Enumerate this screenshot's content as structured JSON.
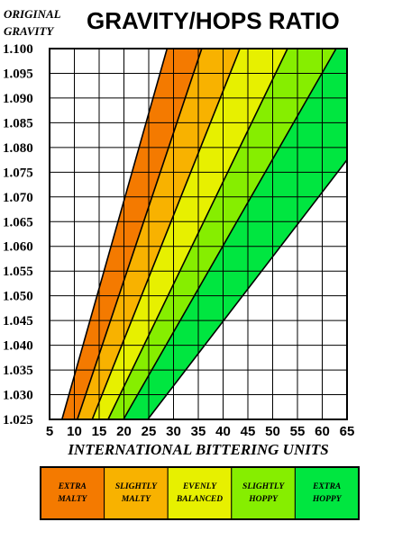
{
  "chart_data": {
    "type": "area",
    "title": "GRAVITY/HOPS RATIO",
    "title_side": [
      "ORIGINAL",
      "GRAVITY"
    ],
    "xlabel": "INTERNATIONAL BITTERING UNITS",
    "ylabel": "ORIGINAL GRAVITY",
    "xlim": [
      5,
      65
    ],
    "ylim": [
      1.025,
      1.1
    ],
    "x_ticks": [
      "5",
      "10",
      "15",
      "20",
      "25",
      "30",
      "35",
      "40",
      "45",
      "50",
      "55",
      "60",
      "65"
    ],
    "y_ticks": [
      "1.025",
      "1.030",
      "1.035",
      "1.040",
      "1.045",
      "1.050",
      "1.055",
      "1.060",
      "1.065",
      "1.070",
      "1.075",
      "1.080",
      "1.085",
      "1.090",
      "1.095",
      "1.100"
    ],
    "grid": true,
    "legend_position": "bottom",
    "boundary_lines": [
      {
        "name": "b1",
        "points": [
          [
            7.5,
            1.025
          ],
          [
            28.7,
            1.1
          ]
        ]
      },
      {
        "name": "b2",
        "points": [
          [
            10.6,
            1.025
          ],
          [
            35.7,
            1.1
          ]
        ]
      },
      {
        "name": "b3",
        "points": [
          [
            13.6,
            1.025
          ],
          [
            43.4,
            1.1
          ]
        ]
      },
      {
        "name": "b4",
        "points": [
          [
            16.8,
            1.025
          ],
          [
            53.0,
            1.1
          ]
        ]
      },
      {
        "name": "b5",
        "points": [
          [
            19.9,
            1.025
          ],
          [
            62.8,
            1.1
          ]
        ]
      },
      {
        "name": "b6",
        "points": [
          [
            24.8,
            1.025
          ],
          [
            65.0,
            1.0775
          ]
        ]
      }
    ],
    "series": [
      {
        "name": "EXTRA MALTY",
        "color": "#f47a00",
        "lower": "b1",
        "upper": "b2"
      },
      {
        "name": "SLIGHTLY MALTY",
        "color": "#f8b200",
        "lower": "b2",
        "upper": "b3"
      },
      {
        "name": "EVENLY BALANCED",
        "color": "#e7f000",
        "lower": "b3",
        "upper": "b4"
      },
      {
        "name": "SLIGHTLY HOPPY",
        "color": "#86ee00",
        "lower": "b4",
        "upper": "b5"
      },
      {
        "name": "EXTRA HOPPY",
        "color": "#00e640",
        "lower": "b5",
        "upper": "b6"
      }
    ]
  },
  "legend": [
    {
      "lines": [
        "EXTRA",
        "MALTY"
      ],
      "color": "#f47a00"
    },
    {
      "lines": [
        "SLIGHTLY",
        "MALTY"
      ],
      "color": "#f8b200"
    },
    {
      "lines": [
        "EVENLY",
        "BALANCED"
      ],
      "color": "#e7f000"
    },
    {
      "lines": [
        "SLIGHTLY",
        "HOPPY"
      ],
      "color": "#86ee00"
    },
    {
      "lines": [
        "EXTRA",
        "HOPPY"
      ],
      "color": "#00e640"
    }
  ]
}
